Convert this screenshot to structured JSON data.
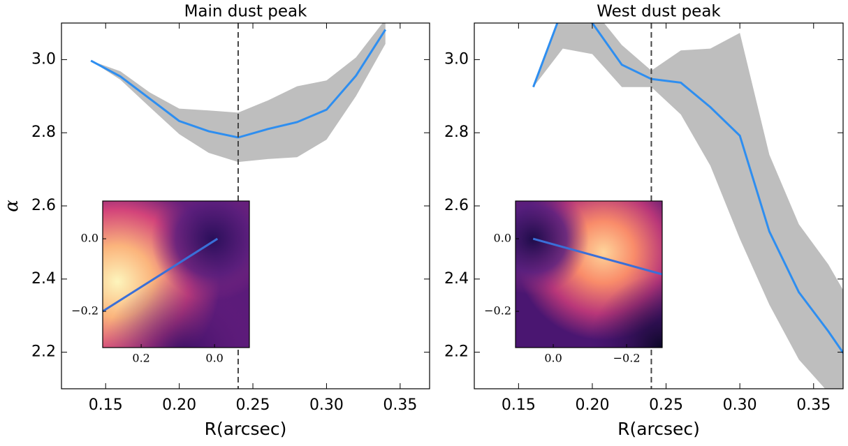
{
  "chart_data": [
    {
      "type": "line",
      "title": "Main dust peak",
      "xlabel": "R(arcsec)",
      "ylabel": "α",
      "x": [
        0.14,
        0.16,
        0.18,
        0.2,
        0.22,
        0.24,
        0.26,
        0.28,
        0.3,
        0.32,
        0.34
      ],
      "series": [
        {
          "color": "#2e8ef0",
          "values": [
            2.997,
            2.954,
            2.893,
            2.832,
            2.804,
            2.787,
            2.81,
            2.829,
            2.863,
            2.956,
            3.082
          ]
        }
      ],
      "band": {
        "color": "#bebebe",
        "upper": [
          2.997,
          2.968,
          2.91,
          2.866,
          2.861,
          2.855,
          2.888,
          2.927,
          2.943,
          3.006,
          3.11
        ],
        "lower": [
          2.997,
          2.945,
          2.87,
          2.796,
          2.745,
          2.72,
          2.728,
          2.733,
          2.781,
          2.9,
          3.043
        ]
      },
      "vline": 0.24,
      "xlim": [
        0.12,
        0.37
      ],
      "ylim": [
        2.1,
        3.1
      ],
      "xticks": [
        0.15,
        {
          "value": 0.2,
          "label": "0.20"
        },
        0.25,
        {
          "value": 0.3,
          "label": "0.30"
        },
        0.35
      ],
      "yticks": [
        2.2,
        2.4,
        2.6,
        2.8,
        {
          "value": 3,
          "label": "3.0"
        }
      ],
      "inset": {
        "xlim": [
          0.305,
          -0.095
        ],
        "ylim": [
          -0.3,
          0.104
        ],
        "xticks": [
          0.2,
          {
            "value": 0,
            "label": "0.0"
          }
        ],
        "yticks": [
          {
            "value": -0.2,
            "label": "−0.2"
          },
          {
            "value": 0,
            "label": "0.0"
          }
        ],
        "line": {
          "color": "#3a6fd8",
          "x": [
            -0.008,
            0.305
          ],
          "y": [
            0,
            -0.2
          ]
        }
      }
    },
    {
      "type": "line",
      "title": "West dust peak",
      "xlabel": "R(arcsec)",
      "x": [
        0.16,
        0.18,
        0.2,
        0.22,
        0.24,
        0.26,
        0.28,
        0.3,
        0.32,
        0.34,
        0.36,
        0.38
      ],
      "series": [
        {
          "color": "#2e8ef0",
          "values": [
            2.925,
            3.14,
            3.1,
            2.986,
            2.947,
            2.937,
            2.87,
            2.792,
            2.53,
            2.364,
            2.257,
            2.14
          ]
        }
      ],
      "band": {
        "color": "#bebebe",
        "upper": [
          2.925,
          3.15,
          3.14,
          3.04,
          2.97,
          3.025,
          3.03,
          3.073,
          2.74,
          2.55,
          2.44,
          2.3
        ],
        "lower": [
          2.925,
          3.03,
          3.015,
          2.925,
          2.925,
          2.85,
          2.71,
          2.51,
          2.33,
          2.18,
          2.09,
          2.0
        ]
      },
      "vline": 0.24,
      "xlim": [
        0.12,
        0.37
      ],
      "ylim": [
        2.1,
        3.1
      ],
      "xticks": [
        0.15,
        {
          "value": 0.2,
          "label": "0.20"
        },
        0.25,
        {
          "value": 0.3,
          "label": "0.30"
        },
        0.35
      ],
      "yticks": [
        2.2,
        2.4,
        2.6,
        2.8,
        {
          "value": 3,
          "label": "3.0"
        }
      ],
      "inset": {
        "xlim": [
          0.103,
          -0.297
        ],
        "ylim": [
          -0.3,
          0.104
        ],
        "xticks": [
          {
            "value": 0,
            "label": "0.0"
          },
          {
            "value": -0.2,
            "label": "−0.2"
          }
        ],
        "yticks": [
          {
            "value": -0.2,
            "label": "−0.2"
          },
          {
            "value": 0,
            "label": "0.0"
          }
        ],
        "line": {
          "color": "#3a6fd8",
          "x": [
            0.055,
            -0.297
          ],
          "y": [
            0,
            -0.098
          ]
        }
      }
    }
  ]
}
